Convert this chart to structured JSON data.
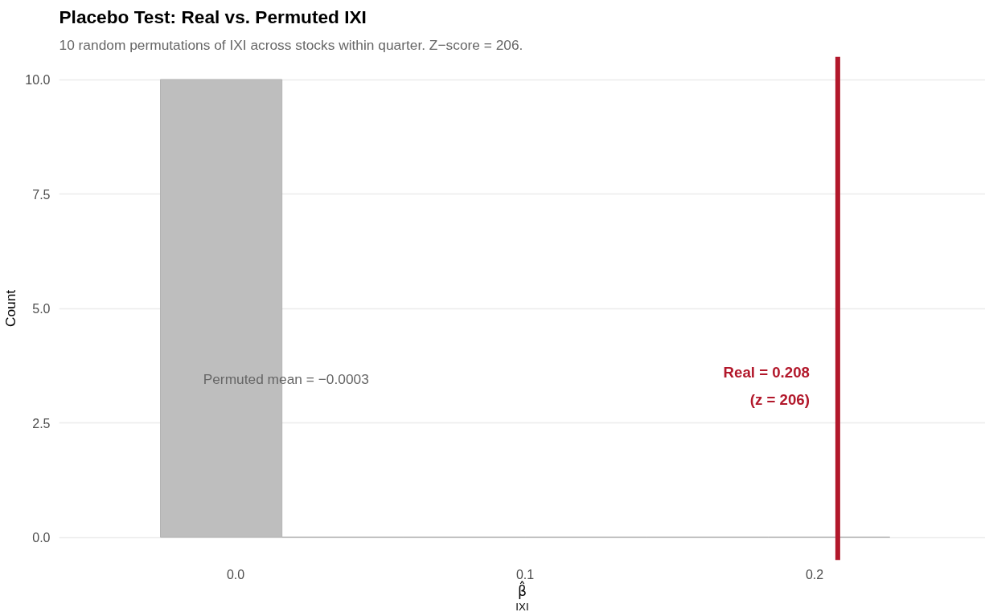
{
  "chart_data": {
    "type": "histogram",
    "title": "Placebo Test: Real vs. Permuted IXI",
    "subtitle": "10 random permutations of IXI across stocks within quarter. Z−score = 206.",
    "xlabel": "β̂$_{IXI}$",
    "ylabel": "Count",
    "bins": [
      -0.026,
      0.016,
      0.058,
      0.1,
      0.142,
      0.184,
      0.226
    ],
    "values": [
      10,
      0,
      0,
      0,
      0,
      0
    ],
    "color": "#bebebe",
    "xlim": [
      -0.061,
      0.259
    ],
    "ylim": [
      -0.5,
      10.5
    ],
    "xticks": [
      {
        "value": 0,
        "label": "0.0"
      },
      {
        "value": 0.1,
        "label": "0.1"
      },
      {
        "value": 0.2,
        "label": "0.2"
      }
    ],
    "yticks": [
      {
        "value": 0,
        "label": "0.0"
      },
      {
        "value": 2.5,
        "label": "2.5"
      },
      {
        "value": 5,
        "label": "5.0"
      },
      {
        "value": 7.5,
        "label": "7.5"
      },
      {
        "value": 10,
        "label": "10.0"
      }
    ],
    "grid": "y",
    "ref_lines": [
      {
        "axis": "x",
        "value": 0.208,
        "label": "Real = 0.208\n(z = 206)",
        "color": "#b2182b"
      }
    ],
    "annotations": [
      "Permuted mean = −0.0003"
    ]
  }
}
